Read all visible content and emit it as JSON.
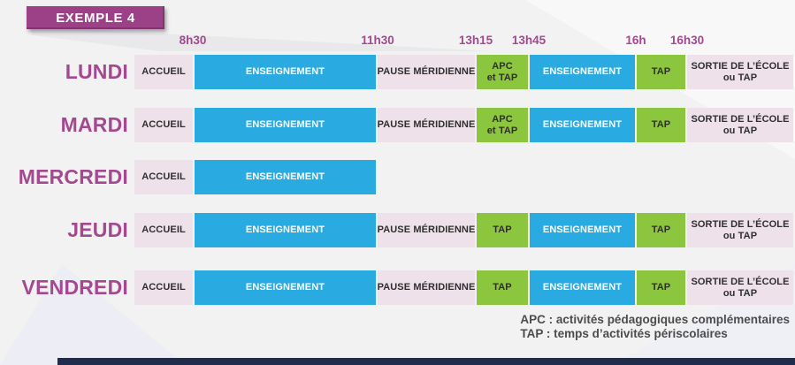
{
  "badge": {
    "label": "EXEMPLE 4"
  },
  "timeline": [
    "8h30",
    "11h30",
    "13h15",
    "13h45",
    "16h",
    "16h30"
  ],
  "days": [
    {
      "label": "LUNDI",
      "blocks": [
        {
          "slot": "accueil",
          "type": "pink",
          "lines": [
            "ACCUEIL"
          ]
        },
        {
          "slot": "ens1",
          "type": "blue",
          "lines": [
            "ENSEIGNEMENT"
          ]
        },
        {
          "slot": "pause",
          "type": "pink",
          "lines": [
            "PAUSE MÉRIDIENNE"
          ]
        },
        {
          "slot": "apc",
          "type": "green",
          "lines": [
            "APC",
            "et TAP"
          ]
        },
        {
          "slot": "ens2",
          "type": "blue",
          "lines": [
            "ENSEIGNEMENT"
          ]
        },
        {
          "slot": "tap",
          "type": "green",
          "lines": [
            "TAP"
          ]
        },
        {
          "slot": "sortie",
          "type": "pink",
          "lines": [
            "SORTIE DE L’ÉCOLE",
            "ou TAP"
          ]
        }
      ]
    },
    {
      "label": "MARDI",
      "blocks": [
        {
          "slot": "accueil",
          "type": "pink",
          "lines": [
            "ACCUEIL"
          ]
        },
        {
          "slot": "ens1",
          "type": "blue",
          "lines": [
            "ENSEIGNEMENT"
          ]
        },
        {
          "slot": "pause",
          "type": "pink",
          "lines": [
            "PAUSE MÉRIDIENNE"
          ]
        },
        {
          "slot": "apc",
          "type": "green",
          "lines": [
            "APC",
            "et TAP"
          ]
        },
        {
          "slot": "ens2",
          "type": "blue",
          "lines": [
            "ENSEIGNEMENT"
          ]
        },
        {
          "slot": "tap",
          "type": "green",
          "lines": [
            "TAP"
          ]
        },
        {
          "slot": "sortie",
          "type": "pink",
          "lines": [
            "SORTIE DE L’ÉCOLE",
            "ou TAP"
          ]
        }
      ]
    },
    {
      "label": "MERCREDI",
      "blocks": [
        {
          "slot": "accueil",
          "type": "pink",
          "lines": [
            "ACCUEIL"
          ]
        },
        {
          "slot": "ens1",
          "type": "blue",
          "lines": [
            "ENSEIGNEMENT"
          ]
        }
      ]
    },
    {
      "label": "JEUDI",
      "blocks": [
        {
          "slot": "accueil",
          "type": "pink",
          "lines": [
            "ACCUEIL"
          ]
        },
        {
          "slot": "ens1",
          "type": "blue",
          "lines": [
            "ENSEIGNEMENT"
          ]
        },
        {
          "slot": "pause",
          "type": "pink",
          "lines": [
            "PAUSE MÉRIDIENNE"
          ]
        },
        {
          "slot": "apc",
          "type": "green",
          "lines": [
            "TAP"
          ]
        },
        {
          "slot": "ens2",
          "type": "blue",
          "lines": [
            "ENSEIGNEMENT"
          ]
        },
        {
          "slot": "tap",
          "type": "green",
          "lines": [
            "TAP"
          ]
        },
        {
          "slot": "sortie",
          "type": "pink",
          "lines": [
            "SORTIE DE L’ÉCOLE",
            "ou TAP"
          ]
        }
      ]
    },
    {
      "label": "VENDREDI",
      "blocks": [
        {
          "slot": "accueil",
          "type": "pink",
          "lines": [
            "ACCUEIL"
          ]
        },
        {
          "slot": "ens1",
          "type": "blue",
          "lines": [
            "ENSEIGNEMENT"
          ]
        },
        {
          "slot": "pause",
          "type": "pink",
          "lines": [
            "PAUSE MÉRIDIENNE"
          ]
        },
        {
          "slot": "apc",
          "type": "green",
          "lines": [
            "TAP"
          ]
        },
        {
          "slot": "ens2",
          "type": "blue",
          "lines": [
            "ENSEIGNEMENT"
          ]
        },
        {
          "slot": "tap",
          "type": "green",
          "lines": [
            "TAP"
          ]
        },
        {
          "slot": "sortie",
          "type": "pink",
          "lines": [
            "SORTIE DE L’ÉCOLE",
            "ou TAP"
          ]
        }
      ]
    }
  ],
  "legend": [
    "APC : activités pédagogiques complémentaires",
    "TAP : temps d’activités périscolaires"
  ],
  "colors": {
    "accent_purple": "#9c4187",
    "day_text": "#a4498f",
    "block_pink": "#eee1ea",
    "block_blue": "#29abe2",
    "block_green": "#8cc63f",
    "block_text_dark": "#2f2f2e",
    "legend_text": "#4c4c4c",
    "bottom_bar": "#1f2c4e"
  }
}
